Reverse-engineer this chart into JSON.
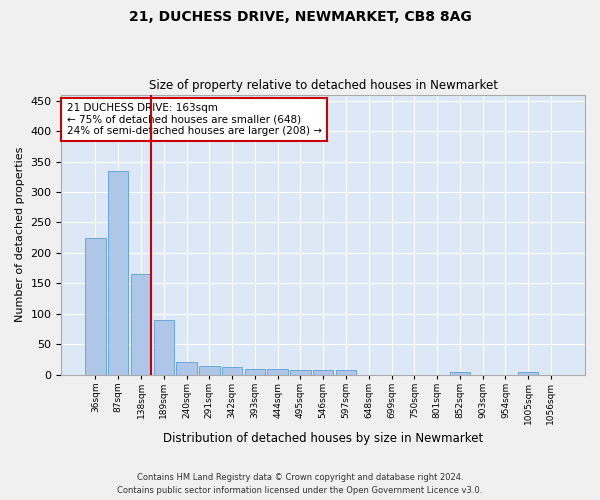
{
  "title1": "21, DUCHESS DRIVE, NEWMARKET, CB8 8AG",
  "title2": "Size of property relative to detached houses in Newmarket",
  "xlabel": "Distribution of detached houses by size in Newmarket",
  "ylabel": "Number of detached properties",
  "categories": [
    "36sqm",
    "87sqm",
    "138sqm",
    "189sqm",
    "240sqm",
    "291sqm",
    "342sqm",
    "393sqm",
    "444sqm",
    "495sqm",
    "546sqm",
    "597sqm",
    "648sqm",
    "699sqm",
    "750sqm",
    "801sqm",
    "852sqm",
    "903sqm",
    "954sqm",
    "1005sqm",
    "1056sqm"
  ],
  "values": [
    224,
    335,
    165,
    90,
    20,
    14,
    13,
    10,
    10,
    8,
    8,
    8,
    0,
    0,
    0,
    0,
    5,
    0,
    0,
    5,
    0
  ],
  "bar_color": "#aec6e8",
  "bar_edge_color": "#5a9fd4",
  "bg_color": "#dce8f5",
  "grid_color": "#ffffff",
  "vline_color": "#cc0000",
  "annotation_text": "21 DUCHESS DRIVE: 163sqm\n← 75% of detached houses are smaller (648)\n24% of semi-detached houses are larger (208) →",
  "annotation_box_color": "#ffffff",
  "annotation_box_edge": "#cc0000",
  "ylim": [
    0,
    460
  ],
  "yticks": [
    0,
    50,
    100,
    150,
    200,
    250,
    300,
    350,
    400,
    450
  ],
  "footer1": "Contains HM Land Registry data © Crown copyright and database right 2024.",
  "footer2": "Contains public sector information licensed under the Open Government Licence v3.0."
}
